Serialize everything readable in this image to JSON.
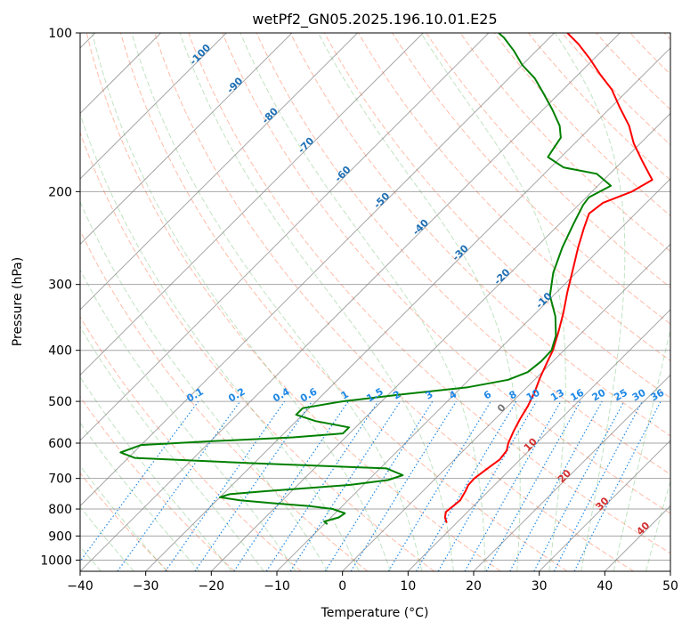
{
  "chart_data": {
    "type": "line",
    "title": "wetPf2_GN05.2025.196.10.01.E25",
    "xlabel": "Temperature (°C)",
    "ylabel": "Pressure (hPa)",
    "xlim": [
      -40,
      50
    ],
    "ylim": [
      1050,
      100
    ],
    "y_scale": "log",
    "skew_t": true,
    "grid": true,
    "x_ticks": [
      -40,
      -30,
      -20,
      -10,
      0,
      10,
      20,
      30,
      40,
      50
    ],
    "y_ticks": [
      100,
      200,
      300,
      400,
      500,
      600,
      700,
      800,
      900,
      1000
    ],
    "x_tick_labels": [
      "−40",
      "−30",
      "−20",
      "−10",
      "0",
      "10",
      "20",
      "30",
      "40",
      "50"
    ],
    "y_tick_labels": [
      "100",
      "200",
      "300",
      "400",
      "500",
      "600",
      "700",
      "800",
      "900",
      "1000"
    ],
    "series": [
      {
        "role": "temperature",
        "color": "#ff0000",
        "points": [
          [
            8.5,
            850
          ],
          [
            7.4,
            830
          ],
          [
            6.7,
            810
          ],
          [
            6.9,
            790
          ],
          [
            7.1,
            770
          ],
          [
            6.5,
            740
          ],
          [
            6.0,
            720
          ],
          [
            5.9,
            700
          ],
          [
            6.4,
            670
          ],
          [
            6.9,
            645
          ],
          [
            6.6,
            620
          ],
          [
            5.7,
            600
          ],
          [
            4.7,
            570
          ],
          [
            3.8,
            540
          ],
          [
            3.0,
            510
          ],
          [
            1.9,
            480
          ],
          [
            0.5,
            450
          ],
          [
            -0.8,
            420
          ],
          [
            -1.7,
            400
          ],
          [
            -3.6,
            370
          ],
          [
            -5.8,
            340
          ],
          [
            -8.4,
            310
          ],
          [
            -11.1,
            280
          ],
          [
            -13.6,
            255
          ],
          [
            -15.6,
            235
          ],
          [
            -17.1,
            220
          ],
          [
            -16.6,
            210
          ],
          [
            -13.9,
            200
          ],
          [
            -12.6,
            190
          ],
          [
            -17.0,
            175
          ],
          [
            -21.0,
            162
          ],
          [
            -24.4,
            150
          ],
          [
            -28.8,
            138
          ],
          [
            -32.6,
            128
          ],
          [
            -36.6,
            120
          ],
          [
            -40.6,
            112
          ],
          [
            -44.6,
            105
          ],
          [
            -48.0,
            100
          ]
        ]
      },
      {
        "role": "dewpoint",
        "color": "#008000",
        "points": [
          [
            -9.5,
            855
          ],
          [
            -10.4,
            845
          ],
          [
            -8.8,
            830
          ],
          [
            -8.5,
            815
          ],
          [
            -11.0,
            800
          ],
          [
            -15.0,
            790
          ],
          [
            -21.0,
            780
          ],
          [
            -26.5,
            770
          ],
          [
            -30.0,
            760
          ],
          [
            -29.0,
            750
          ],
          [
            -24.0,
            740
          ],
          [
            -18.0,
            730
          ],
          [
            -12.0,
            720
          ],
          [
            -7.0,
            705
          ],
          [
            -5.5,
            690
          ],
          [
            -9.0,
            670
          ],
          [
            -30.0,
            655
          ],
          [
            -49.0,
            640
          ],
          [
            -52.0,
            625
          ],
          [
            -50.0,
            605
          ],
          [
            -40.0,
            595
          ],
          [
            -28.0,
            585
          ],
          [
            -21.0,
            575
          ],
          [
            -21.0,
            560
          ],
          [
            -27.0,
            545
          ],
          [
            -31.0,
            530
          ],
          [
            -31.0,
            515
          ],
          [
            -26.0,
            500
          ],
          [
            -18.0,
            485
          ],
          [
            -9.0,
            470
          ],
          [
            -4.0,
            455
          ],
          [
            -2.2,
            440
          ],
          [
            -1.8,
            420
          ],
          [
            -1.9,
            400
          ],
          [
            -3.5,
            375
          ],
          [
            -6.5,
            345
          ],
          [
            -10.5,
            315
          ],
          [
            -13.5,
            285
          ],
          [
            -16.0,
            255
          ],
          [
            -17.9,
            230
          ],
          [
            -19.3,
            212
          ],
          [
            -19.6,
            205
          ],
          [
            -18.0,
            195
          ],
          [
            -22.0,
            185
          ],
          [
            -28.0,
            180
          ],
          [
            -32.0,
            172
          ],
          [
            -32.5,
            165
          ],
          [
            -33.0,
            158
          ],
          [
            -35.0,
            150
          ],
          [
            -38.5,
            140
          ],
          [
            -42.5,
            130
          ],
          [
            -46.0,
            122
          ],
          [
            -50.0,
            115
          ],
          [
            -53.5,
            108
          ],
          [
            -57.0,
            102
          ],
          [
            -58.5,
            100
          ]
        ]
      }
    ],
    "isotherm_labels": [
      {
        "text": "-100",
        "value": -100
      },
      {
        "text": "-90",
        "value": -90
      },
      {
        "text": "-80",
        "value": -80
      },
      {
        "text": "-70",
        "value": -70
      },
      {
        "text": "-60",
        "value": -60
      },
      {
        "text": "-50",
        "value": -50
      },
      {
        "text": "-40",
        "value": -40
      },
      {
        "text": "-30",
        "value": -30
      },
      {
        "text": "-20",
        "value": -20
      },
      {
        "text": "-10",
        "value": -10
      }
    ],
    "moist_adiabat_labels": [
      {
        "text": "0",
        "value": 0
      },
      {
        "text": "10",
        "value": 10
      },
      {
        "text": "20",
        "value": 20
      },
      {
        "text": "30",
        "value": 30
      },
      {
        "text": "40",
        "value": 40
      }
    ],
    "mixing_ratio_labels": [
      "0.1",
      "0.2",
      "0.4",
      "0.6",
      "1",
      "1.5",
      "2",
      "3",
      "4",
      "6",
      "8",
      "10",
      "13",
      "16",
      "20",
      "25",
      "30",
      "36"
    ],
    "mixing_ratio_values": [
      0.1,
      0.2,
      0.4,
      0.6,
      1,
      1.5,
      2,
      3,
      4,
      6,
      8,
      10,
      13,
      16,
      20,
      25,
      30,
      36
    ]
  }
}
